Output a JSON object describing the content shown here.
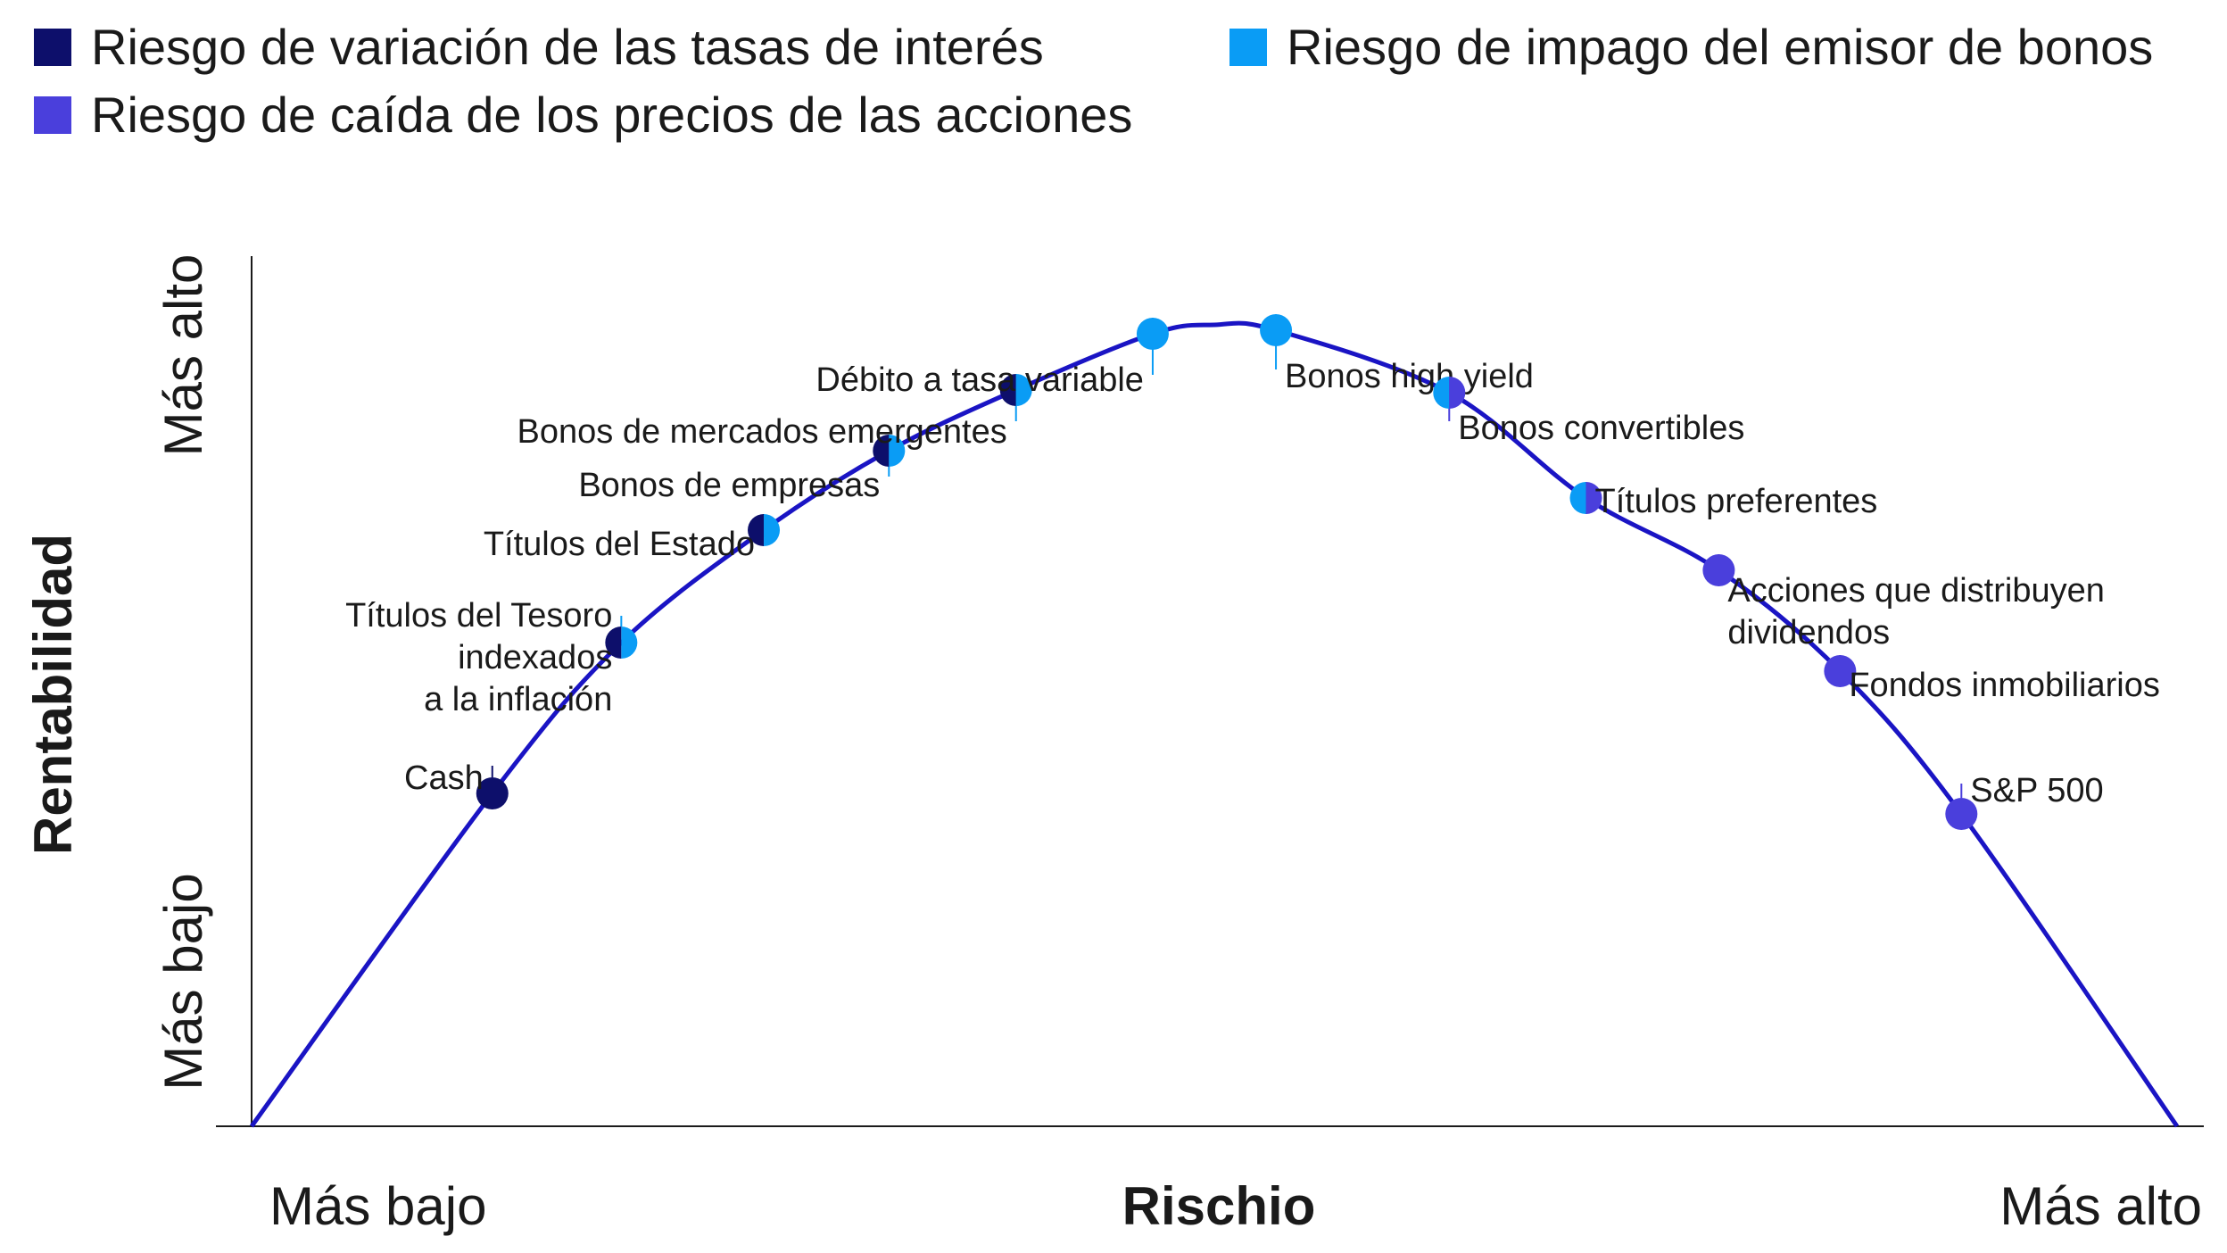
{
  "chart_data": {
    "type": "line",
    "title": "",
    "xlabel": "Rischio",
    "ylabel": "Rentabilidad",
    "x_ticks": [
      "Más bajo",
      "Más alto"
    ],
    "y_ticks": [
      "Más bajo",
      "Más alto"
    ],
    "xlim": [
      0,
      10
    ],
    "ylim": [
      0,
      10
    ],
    "legend_position": "top",
    "legend": [
      {
        "key": "rate",
        "label": "Riesgo de variación de las tasas de interés",
        "color": "#0d0f6b"
      },
      {
        "key": "default",
        "label": "Riesgo de impago del emisor de bonos",
        "color": "#0a9cf5"
      },
      {
        "key": "equity",
        "label": "Riesgo de caída de los precios de las acciones",
        "color": "#4a3fdc"
      }
    ],
    "curve_color": "#1a14c4",
    "points": [
      {
        "label": "Cash",
        "x": 1.25,
        "y": 3.73,
        "risks": [
          "rate"
        ]
      },
      {
        "label": "Títulos del Tesoro indexados a la inflación",
        "x": 1.92,
        "y": 5.42,
        "risks": [
          "rate",
          "default"
        ]
      },
      {
        "label": "Títulos del Estado",
        "x": 2.66,
        "y": 6.68,
        "risks": [
          "rate",
          "default"
        ]
      },
      {
        "label": "Bonos de empresas",
        "x": 3.31,
        "y": 7.57,
        "risks": [
          "rate",
          "default"
        ]
      },
      {
        "label": "Bonos de mercados emergentes",
        "x": 3.97,
        "y": 8.25,
        "risks": [
          "rate",
          "default"
        ]
      },
      {
        "label": "Débito a tasa variable",
        "x": 4.68,
        "y": 8.88,
        "risks": [
          "default"
        ]
      },
      {
        "label": "Bonos high yield",
        "x": 5.32,
        "y": 8.92,
        "risks": [
          "default"
        ]
      },
      {
        "label": "Bonos convertibles",
        "x": 6.22,
        "y": 8.22,
        "risks": [
          "default",
          "equity"
        ]
      },
      {
        "label": "Títulos preferentes",
        "x": 6.93,
        "y": 7.04,
        "risks": [
          "default",
          "equity"
        ]
      },
      {
        "label": "Acciones que distribuyen dividendos",
        "x": 7.62,
        "y": 6.23,
        "risks": [
          "equity"
        ]
      },
      {
        "label": "Fondos inmobiliarios",
        "x": 8.25,
        "y": 5.1,
        "risks": [
          "equity"
        ]
      },
      {
        "label": "S&P 500",
        "x": 8.88,
        "y": 3.5,
        "risks": [
          "equity"
        ]
      }
    ]
  }
}
